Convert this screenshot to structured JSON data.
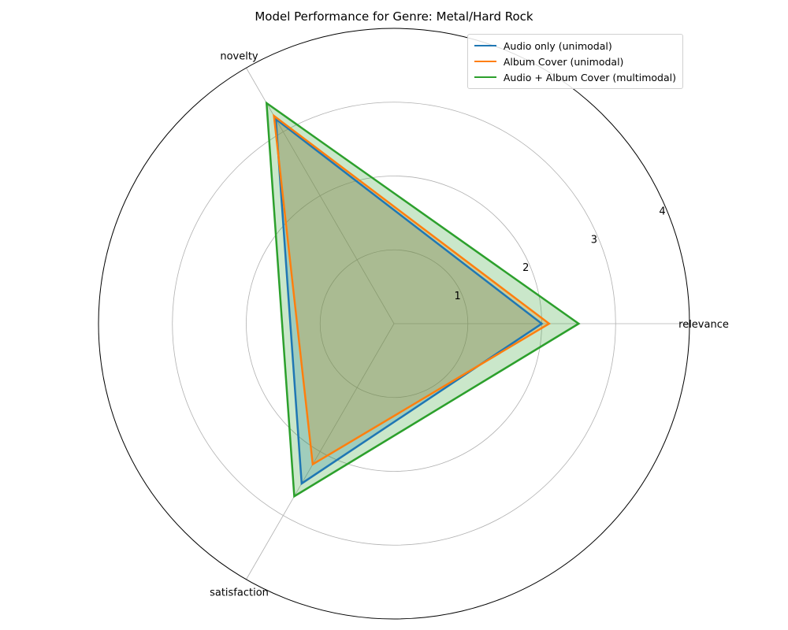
{
  "chart_data": {
    "type": "radar",
    "title": "Model Performance for Genre: Metal/Hard Rock",
    "axes": [
      "relevance",
      "novelty",
      "satisfaction"
    ],
    "rlim": [
      0,
      4
    ],
    "rticks": [
      1,
      2,
      3,
      4
    ],
    "grid": true,
    "legend_position": "top-right",
    "series": [
      {
        "name": "Audio only (unimodal)",
        "color": "#1f77b4",
        "values": [
          2.0,
          3.2,
          2.5
        ]
      },
      {
        "name": "Album Cover (unimodal)",
        "color": "#ff7f0e",
        "values": [
          2.1,
          3.25,
          2.2
        ]
      },
      {
        "name": "Audio + Album Cover (multimodal)",
        "color": "#2ca02c",
        "values": [
          2.5,
          3.45,
          2.7
        ]
      }
    ]
  }
}
